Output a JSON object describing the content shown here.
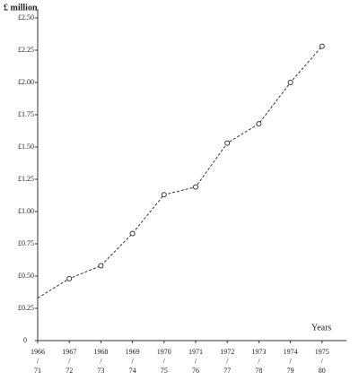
{
  "chart_data": {
    "type": "line",
    "y_label": "£ million",
    "x_label": "Years",
    "categories": [
      "1966/71",
      "1967/72",
      "1968/73",
      "1969/74",
      "1970/75",
      "1971/76",
      "1972/77",
      "1973/78",
      "1974/79",
      "1975/80"
    ],
    "values": [
      0.33,
      0.48,
      0.58,
      0.83,
      1.13,
      1.19,
      1.53,
      1.68,
      2.0,
      2.28
    ],
    "color": "#333333",
    "ylim": [
      0,
      2.5
    ],
    "yticks": [
      0,
      {
        "value": 0.25,
        "label": "£0.25"
      },
      {
        "value": 0.5,
        "label": "£0.50"
      },
      {
        "value": 0.75,
        "label": "£0.75"
      },
      {
        "value": 1.0,
        "label": "£1.00"
      },
      {
        "value": 1.25,
        "label": "£1.25"
      },
      {
        "value": 1.5,
        "label": "£1.50"
      },
      {
        "value": 1.75,
        "label": "£1.75"
      },
      {
        "value": 2.0,
        "label": "£2.00"
      },
      {
        "value": 2.25,
        "label": "£2.25"
      },
      {
        "value": 2.5,
        "label": "£2.50"
      }
    ],
    "grid": false
  }
}
